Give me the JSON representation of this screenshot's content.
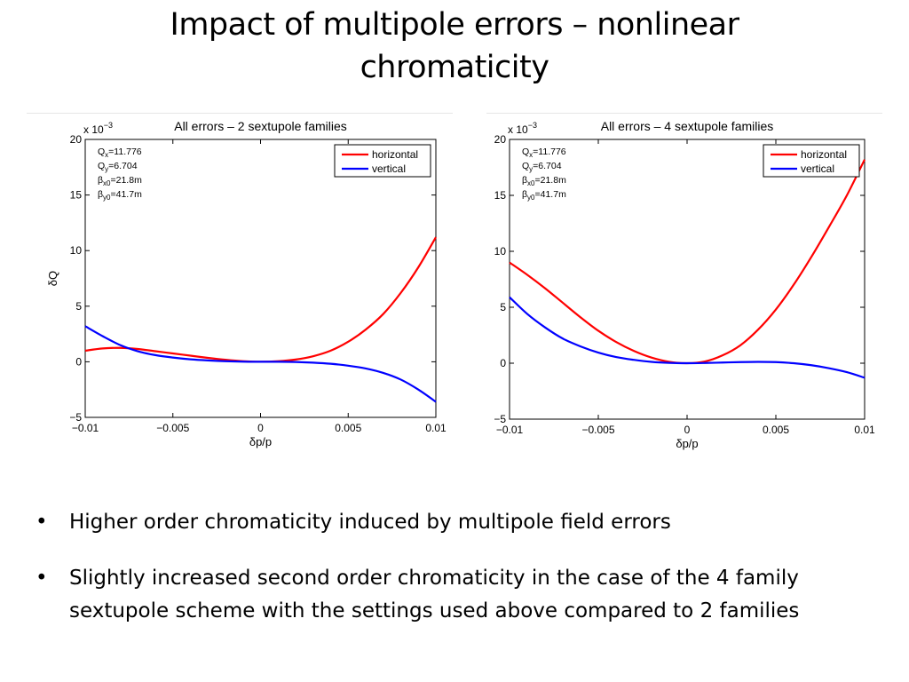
{
  "slide": {
    "title_line1": "Impact of multipole errors – nonlinear",
    "title_line2": "chromaticity",
    "bullet_symbol": "•",
    "bullets": [
      {
        "text": "Higher order chromaticity induced by multipole field errors"
      },
      {
        "line1": "Slightly increased second order chromaticity in the case of the 4 family",
        "line2": "sextupole scheme with the settings used above compared to 2 families"
      }
    ]
  },
  "colors": {
    "horizontal": "#ff0000",
    "vertical": "#0000ff",
    "axis": "#000000"
  },
  "chart_data": [
    {
      "type": "line",
      "title": "All errors – 2 sextupole families",
      "xlabel": "δp/p",
      "ylabel": "δQ",
      "y_multiplier": "x 10",
      "y_exponent": "−3",
      "xlim": [
        -0.01,
        0.01
      ],
      "ylim": [
        -5,
        20
      ],
      "x_ticks": [
        -0.01,
        -0.005,
        0,
        0.005,
        0.01
      ],
      "x_tick_labels": [
        "−0.01",
        "−0.005",
        "0",
        "0.005",
        "0.01"
      ],
      "y_ticks": [
        -5,
        0,
        5,
        10,
        15,
        20
      ],
      "y_tick_labels": [
        "−5",
        "0",
        "5",
        "10",
        "15",
        "20"
      ],
      "legend_position": "top-right",
      "annotations": [
        {
          "sym": "Q",
          "sub": "x",
          "val": "=11.776"
        },
        {
          "sym": "Q",
          "sub": "y",
          "val": "=6.704"
        },
        {
          "sym": "β",
          "sub": "x0",
          "val": "=21.8m"
        },
        {
          "sym": "β",
          "sub": "y0",
          "val": "=41.7m"
        }
      ],
      "series": [
        {
          "name": "horizontal",
          "color": "#ff0000",
          "x": [
            -0.01,
            -0.009,
            -0.008,
            -0.007,
            -0.006,
            -0.005,
            -0.004,
            -0.003,
            -0.002,
            -0.001,
            0,
            0.001,
            0.002,
            0.003,
            0.004,
            0.005,
            0.006,
            0.007,
            0.008,
            0.009,
            0.01
          ],
          "y": [
            1.0,
            1.2,
            1.25,
            1.15,
            0.95,
            0.75,
            0.55,
            0.35,
            0.18,
            0.05,
            0,
            0.05,
            0.2,
            0.5,
            1.0,
            1.8,
            2.9,
            4.3,
            6.2,
            8.5,
            11.2
          ]
        },
        {
          "name": "vertical",
          "color": "#0000ff",
          "x": [
            -0.01,
            -0.009,
            -0.008,
            -0.007,
            -0.006,
            -0.005,
            -0.004,
            -0.003,
            -0.002,
            -0.001,
            0,
            0.001,
            0.002,
            0.003,
            0.004,
            0.005,
            0.006,
            0.007,
            0.008,
            0.009,
            0.01
          ],
          "y": [
            3.2,
            2.3,
            1.5,
            0.95,
            0.6,
            0.38,
            0.22,
            0.12,
            0.05,
            0.01,
            0,
            0,
            -0.02,
            -0.08,
            -0.18,
            -0.35,
            -0.6,
            -1.0,
            -1.6,
            -2.5,
            -3.6
          ]
        }
      ]
    },
    {
      "type": "line",
      "title": "All errors – 4 sextupole families",
      "xlabel": "δp/p",
      "ylabel": "δQ",
      "y_multiplier": "x 10",
      "y_exponent": "−3",
      "xlim": [
        -0.01,
        0.01
      ],
      "ylim": [
        -5,
        20
      ],
      "x_ticks": [
        -0.01,
        -0.005,
        0,
        0.005,
        0.01
      ],
      "x_tick_labels": [
        "−0.01",
        "−0.005",
        "0",
        "0.005",
        "0.01"
      ],
      "y_ticks": [
        -5,
        0,
        5,
        10,
        15,
        20
      ],
      "y_tick_labels": [
        "−5",
        "0",
        "5",
        "10",
        "15",
        "20"
      ],
      "legend_position": "top-right",
      "annotations": [
        {
          "sym": "Q",
          "sub": "x",
          "val": "=11.776"
        },
        {
          "sym": "Q",
          "sub": "y",
          "val": "=6.704"
        },
        {
          "sym": "β",
          "sub": "x0",
          "val": "=21.8m"
        },
        {
          "sym": "β",
          "sub": "y0",
          "val": "=41.7m"
        }
      ],
      "series": [
        {
          "name": "horizontal",
          "color": "#ff0000",
          "x": [
            -0.01,
            -0.009,
            -0.008,
            -0.007,
            -0.006,
            -0.005,
            -0.004,
            -0.003,
            -0.002,
            -0.001,
            0,
            0.001,
            0.002,
            0.003,
            0.004,
            0.005,
            0.006,
            0.007,
            0.008,
            0.009,
            0.01
          ],
          "y": [
            9.0,
            7.9,
            6.7,
            5.4,
            4.1,
            2.9,
            1.9,
            1.1,
            0.5,
            0.12,
            0,
            0.15,
            0.7,
            1.6,
            3.0,
            4.8,
            7.0,
            9.5,
            12.2,
            15.0,
            18.2
          ]
        },
        {
          "name": "vertical",
          "color": "#0000ff",
          "x": [
            -0.01,
            -0.009,
            -0.008,
            -0.007,
            -0.006,
            -0.005,
            -0.004,
            -0.003,
            -0.002,
            -0.001,
            0,
            0.001,
            0.002,
            0.003,
            0.004,
            0.005,
            0.006,
            0.007,
            0.008,
            0.009,
            0.01
          ],
          "y": [
            5.9,
            4.4,
            3.2,
            2.2,
            1.5,
            0.95,
            0.55,
            0.3,
            0.12,
            0.03,
            0,
            0.02,
            0.06,
            0.1,
            0.12,
            0.1,
            0.0,
            -0.18,
            -0.45,
            -0.8,
            -1.3
          ]
        }
      ]
    }
  ]
}
